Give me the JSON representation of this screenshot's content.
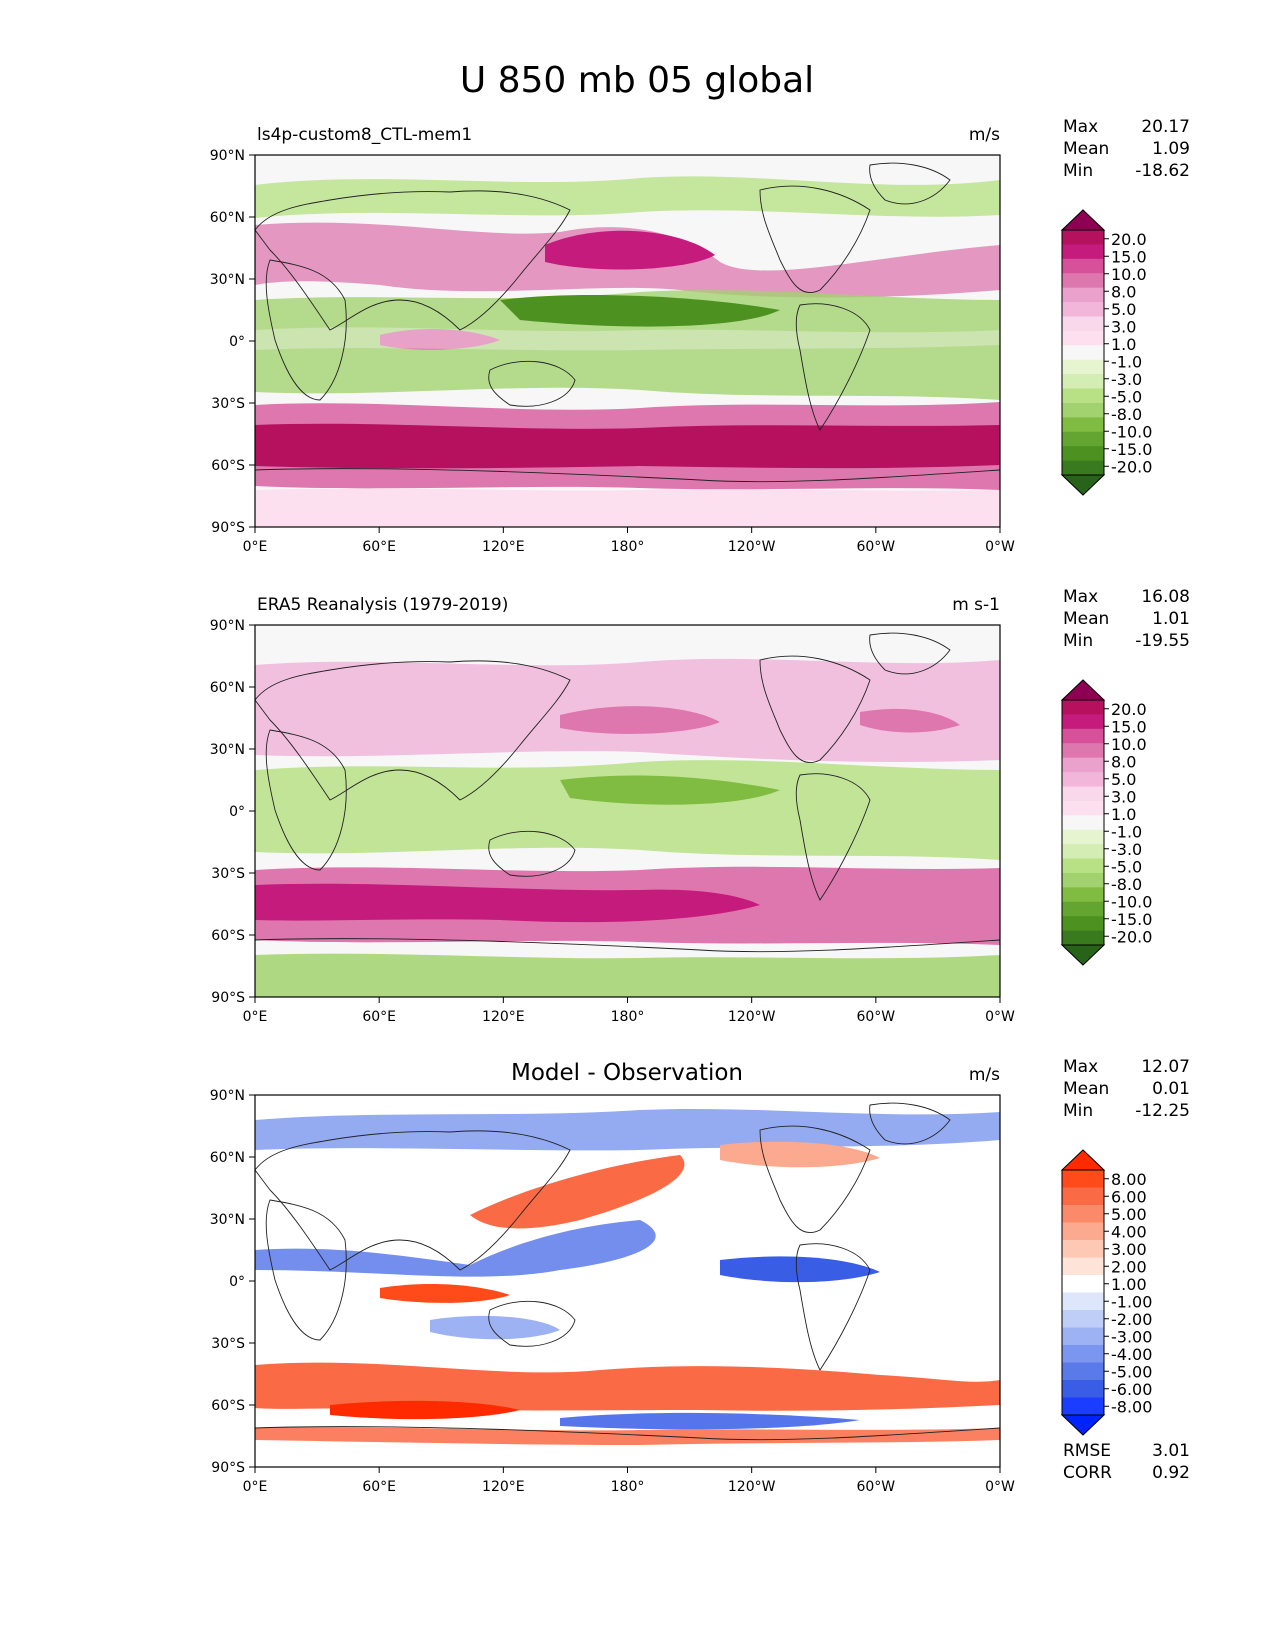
{
  "title": "U 850 mb 05 global",
  "axes": {
    "lat_ticks": [
      "90°N",
      "60°N",
      "30°N",
      "0°",
      "30°S",
      "60°S",
      "90°S"
    ],
    "lon_ticks": [
      "0°E",
      "60°E",
      "120°E",
      "180°",
      "120°W",
      "60°W",
      "0°W"
    ]
  },
  "panels": [
    {
      "id": "model",
      "left_title": "ls4p-custom8_CTL-mem1",
      "center_title": "",
      "units": "m/s",
      "stats": [
        {
          "label": "Max",
          "value": "20.17"
        },
        {
          "label": "Mean",
          "value": "1.09"
        },
        {
          "label": "Min",
          "value": "-18.62"
        }
      ],
      "colorbar": {
        "labels": [
          "20.0",
          "15.0",
          "10.0",
          "8.0",
          "5.0",
          "3.0",
          "1.0",
          "-1.0",
          "-3.0",
          "-5.0",
          "-8.0",
          "-10.0",
          "-15.0",
          "-20.0"
        ],
        "colors": [
          "#8e0152",
          "#b5115f",
          "#c51b7d",
          "#d6509a",
          "#de77ae",
          "#eaa2cd",
          "#f1b6da",
          "#f8d8ea",
          "#fde0ef",
          "#f7f7f7",
          "#e6f5d0",
          "#d3edb4",
          "#b8e186",
          "#a2d26f",
          "#7fbc41",
          "#64a532",
          "#4d9221",
          "#3a7a1e",
          "#276419"
        ]
      },
      "map_note": "model zonal wind field"
    },
    {
      "id": "obs",
      "left_title": "ERA5 Reanalysis (1979-2019)",
      "center_title": "",
      "units": "m s-1",
      "stats": [
        {
          "label": "Max",
          "value": "16.08"
        },
        {
          "label": "Mean",
          "value": "1.01"
        },
        {
          "label": "Min",
          "value": "-19.55"
        }
      ],
      "colorbar": {
        "labels": [
          "20.0",
          "15.0",
          "10.0",
          "8.0",
          "5.0",
          "3.0",
          "1.0",
          "-1.0",
          "-3.0",
          "-5.0",
          "-8.0",
          "-10.0",
          "-15.0",
          "-20.0"
        ],
        "colors": [
          "#8e0152",
          "#b5115f",
          "#c51b7d",
          "#d6509a",
          "#de77ae",
          "#eaa2cd",
          "#f1b6da",
          "#f8d8ea",
          "#fde0ef",
          "#f7f7f7",
          "#e6f5d0",
          "#d3edb4",
          "#b8e186",
          "#a2d26f",
          "#7fbc41",
          "#64a532",
          "#4d9221",
          "#3a7a1e",
          "#276419"
        ]
      },
      "map_note": "observed zonal wind field"
    },
    {
      "id": "diff",
      "left_title": "",
      "center_title": "Model - Observation",
      "units": "m/s",
      "stats": [
        {
          "label": "Max",
          "value": "12.07"
        },
        {
          "label": "Mean",
          "value": "0.01"
        },
        {
          "label": "Min",
          "value": "-12.25"
        }
      ],
      "colorbar": {
        "labels": [
          "8.00",
          "6.00",
          "5.00",
          "4.00",
          "3.00",
          "2.00",
          "1.00",
          "-1.00",
          "-2.00",
          "-3.00",
          "-4.00",
          "-5.00",
          "-6.00",
          "-8.00"
        ],
        "colors": [
          "#ff2a00",
          "#ff4a1a",
          "#fa6a45",
          "#fb8a6a",
          "#fcaa8f",
          "#fdc9b5",
          "#fee3d8",
          "#ffffff",
          "#dde6fb",
          "#bfcef7",
          "#9db2f2",
          "#7b96ee",
          "#5a7aea",
          "#3a5de6",
          "#1a3dff",
          "#0022ff"
        ]
      },
      "bottom_stats": [
        {
          "label": "RMSE",
          "value": "3.01"
        },
        {
          "label": "CORR",
          "value": "0.92"
        }
      ],
      "map_note": "difference field"
    }
  ]
}
